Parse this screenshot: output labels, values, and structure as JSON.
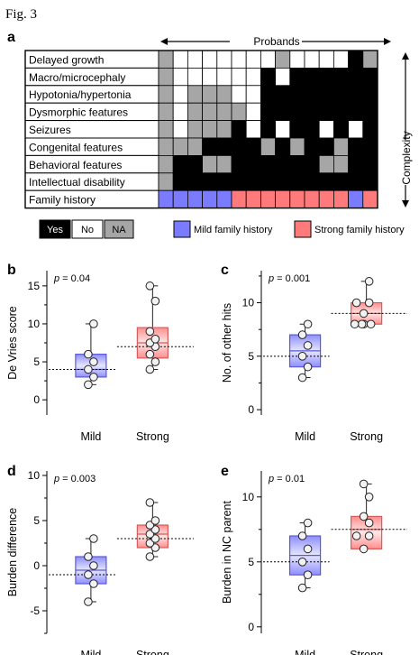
{
  "figure_label": "Fig. 3",
  "panel_a": {
    "letter": "a",
    "probands_label": "Probands",
    "complexity_label": "Complexity",
    "colors": {
      "yes": "#000000",
      "no": "#ffffff",
      "na": "#a6a6a6",
      "mild": "#7b7bff",
      "strong": "#ff7b7b"
    },
    "rows": [
      {
        "label": "Delayed growth",
        "cells": [
          "NA",
          "No",
          "No",
          "No",
          "No",
          "No",
          "No",
          "No",
          "NA",
          "No",
          "No",
          "No",
          "No",
          "Yes",
          "NA"
        ]
      },
      {
        "label": "Macro/microcephaly",
        "cells": [
          "NA",
          "No",
          "No",
          "No",
          "No",
          "No",
          "No",
          "Yes",
          "No",
          "Yes",
          "Yes",
          "Yes",
          "Yes",
          "Yes",
          "Yes"
        ]
      },
      {
        "label": "Hypotonia/hypertonia",
        "cells": [
          "NA",
          "No",
          "NA",
          "NA",
          "NA",
          "No",
          "No",
          "Yes",
          "Yes",
          "Yes",
          "Yes",
          "Yes",
          "Yes",
          "Yes",
          "Yes"
        ]
      },
      {
        "label": "Dysmorphic features",
        "cells": [
          "NA",
          "No",
          "NA",
          "NA",
          "NA",
          "NA",
          "No",
          "Yes",
          "Yes",
          "Yes",
          "Yes",
          "Yes",
          "Yes",
          "Yes",
          "Yes"
        ]
      },
      {
        "label": "Seizures",
        "cells": [
          "NA",
          "No",
          "NA",
          "NA",
          "NA",
          "Yes",
          "No",
          "Yes",
          "No",
          "Yes",
          "Yes",
          "No",
          "Yes",
          "No",
          "Yes"
        ]
      },
      {
        "label": "Congenital features",
        "cells": [
          "NA",
          "NA",
          "NA",
          "Yes",
          "Yes",
          "Yes",
          "Yes",
          "NA",
          "Yes",
          "NA",
          "Yes",
          "Yes",
          "NA",
          "Yes",
          "Yes"
        ]
      },
      {
        "label": "Behavioral features",
        "cells": [
          "NA",
          "Yes",
          "Yes",
          "NA",
          "NA",
          "Yes",
          "Yes",
          "Yes",
          "Yes",
          "Yes",
          "Yes",
          "NA",
          "NA",
          "Yes",
          "Yes"
        ]
      },
      {
        "label": "Intellectual disability",
        "cells": [
          "NA",
          "Yes",
          "Yes",
          "Yes",
          "Yes",
          "Yes",
          "Yes",
          "Yes",
          "Yes",
          "Yes",
          "Yes",
          "Yes",
          "Yes",
          "Yes",
          "Yes"
        ]
      }
    ],
    "family_history": {
      "label": "Family history",
      "cells": [
        "Mild",
        "Mild",
        "Mild",
        "Mild",
        "Mild",
        "Strong",
        "Strong",
        "Strong",
        "Strong",
        "Strong",
        "Strong",
        "Strong",
        "Strong",
        "Mild",
        "Strong"
      ]
    },
    "legend": {
      "yes": "Yes",
      "no": "No",
      "na": "NA",
      "mild": "Mild family history",
      "strong": "Strong family history"
    }
  },
  "chart_data": [
    {
      "panel": "b",
      "type": "box",
      "ylabel": "De Vries score",
      "pvalue": "0.04",
      "ylim": [
        -2,
        17
      ],
      "yticks": [
        0,
        5,
        10,
        15
      ],
      "categories": [
        "Mild",
        "Strong"
      ],
      "groups": [
        {
          "name": "Mild",
          "min": 2,
          "q1": 3,
          "median": 4,
          "q3": 6,
          "max": 10,
          "mean": 4,
          "points": [
            2,
            3,
            4,
            5,
            6,
            10
          ]
        },
        {
          "name": "Strong",
          "min": 4,
          "q1": 5.5,
          "median": 7.5,
          "q3": 9.5,
          "max": 15,
          "mean": 7,
          "points": [
            4,
            5,
            6,
            7,
            7.5,
            8,
            9,
            13,
            15
          ]
        }
      ]
    },
    {
      "panel": "c",
      "type": "box",
      "ylabel": "No. of other hits",
      "pvalue": "0.001",
      "ylim": [
        -0.5,
        13
      ],
      "yticks": [
        0,
        5,
        10
      ],
      "categories": [
        "Mild",
        "Strong"
      ],
      "groups": [
        {
          "name": "Mild",
          "min": 3,
          "q1": 4,
          "median": 5.5,
          "q3": 7,
          "max": 8,
          "mean": 5,
          "points": [
            3,
            4,
            5,
            6,
            7,
            8
          ]
        },
        {
          "name": "Strong",
          "min": 8,
          "q1": 8,
          "median": 9,
          "q3": 10,
          "max": 12,
          "mean": 9,
          "points": [
            8,
            8,
            8,
            8,
            9,
            10,
            10,
            12
          ]
        }
      ]
    },
    {
      "panel": "d",
      "type": "box",
      "ylabel": "Burden difference",
      "pvalue": "0.003",
      "ylim": [
        -7.5,
        10.5
      ],
      "yticks": [
        -5,
        0,
        5,
        10
      ],
      "categories": [
        "Mild",
        "Strong"
      ],
      "groups": [
        {
          "name": "Mild",
          "min": -4,
          "q1": -2,
          "median": -0.5,
          "q3": 1,
          "max": 3,
          "mean": -1,
          "points": [
            -4,
            -2,
            -1,
            0,
            1,
            3
          ]
        },
        {
          "name": "Strong",
          "min": 1,
          "q1": 2,
          "median": 3.5,
          "q3": 4.5,
          "max": 7,
          "mean": 3,
          "points": [
            1,
            2,
            2.5,
            3,
            3.5,
            4,
            4.5,
            5,
            7
          ]
        }
      ]
    },
    {
      "panel": "e",
      "type": "box",
      "ylabel": "Burden in NC parent",
      "pvalue": "0.01",
      "ylim": [
        -0.5,
        12
      ],
      "yticks": [
        0,
        5,
        10
      ],
      "categories": [
        "Mild",
        "Strong"
      ],
      "groups": [
        {
          "name": "Mild",
          "min": 3,
          "q1": 4,
          "median": 5.5,
          "q3": 7,
          "max": 8,
          "mean": 5,
          "points": [
            3,
            4,
            5,
            6,
            7,
            8
          ]
        },
        {
          "name": "Strong",
          "min": 6,
          "q1": 6,
          "median": 7.5,
          "q3": 8.5,
          "max": 11,
          "mean": 7.5,
          "points": [
            6,
            7,
            7,
            8,
            8.5,
            10,
            11
          ]
        }
      ]
    }
  ]
}
